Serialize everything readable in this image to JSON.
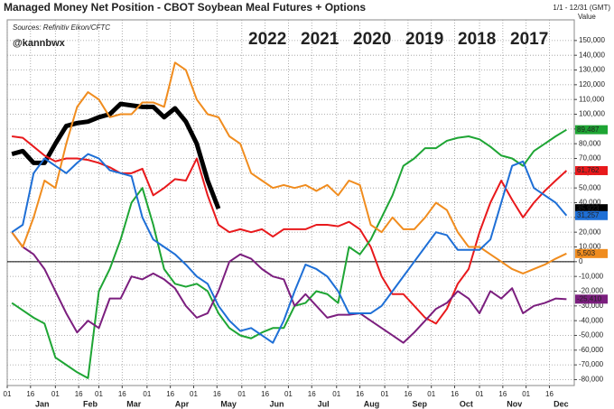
{
  "chart_data": {
    "type": "line",
    "title": "Managed Money Net Position - CBOT Soybean Meal Futures + Options",
    "source": "Sources: Refinitiv Eikon/CFTC",
    "author": "@kannbwx",
    "date_range": "1/1 - 12/31 (GMT)",
    "y_axis_label": "Value",
    "months": [
      "Jan",
      "Feb",
      "Mar",
      "Apr",
      "May",
      "Jun",
      "Jul",
      "Aug",
      "Sep",
      "Oct",
      "Nov",
      "Dec"
    ],
    "xlim": [
      1,
      366
    ],
    "xticks": [
      {
        "value": 1,
        "label": "01"
      },
      {
        "value": 16,
        "label": "16"
      },
      {
        "value": 32,
        "label": "01"
      },
      {
        "value": 47,
        "label": "16"
      },
      {
        "value": 60,
        "label": "01"
      },
      {
        "value": 75,
        "label": "16"
      },
      {
        "value": 91,
        "label": "01"
      },
      {
        "value": 106,
        "label": "16"
      },
      {
        "value": 121,
        "label": "01"
      },
      {
        "value": 136,
        "label": "16"
      },
      {
        "value": 152,
        "label": "01"
      },
      {
        "value": 167,
        "label": "16"
      },
      {
        "value": 182,
        "label": "01"
      },
      {
        "value": 197,
        "label": "16"
      },
      {
        "value": 213,
        "label": "01"
      },
      {
        "value": 228,
        "label": "16"
      },
      {
        "value": 244,
        "label": "01"
      },
      {
        "value": 259,
        "label": "16"
      },
      {
        "value": 274,
        "label": "01"
      },
      {
        "value": 289,
        "label": "16"
      },
      {
        "value": 305,
        "label": "01"
      },
      {
        "value": 320,
        "label": "16"
      },
      {
        "value": 335,
        "label": "01"
      },
      {
        "value": 350,
        "label": "16"
      }
    ],
    "ylim": [
      -84000,
      164000
    ],
    "yticks": [
      {
        "value": -80000,
        "label": "-80,000"
      },
      {
        "value": -70000,
        "label": "-70,000"
      },
      {
        "value": -60000,
        "label": "-60,000"
      },
      {
        "value": -50000,
        "label": "-50,000"
      },
      {
        "value": -40000,
        "label": "-40,000"
      },
      {
        "value": -30000,
        "label": "-30,000"
      },
      {
        "value": -20000,
        "label": "-20,000"
      },
      {
        "value": -10000,
        "label": "-10,000"
      },
      0,
      {
        "value": 10000,
        "label": "10,000"
      },
      {
        "value": 20000,
        "label": "20,000"
      },
      {
        "value": 30000,
        "label": "30,000"
      },
      {
        "value": 40000,
        "label": "40,000"
      },
      {
        "value": 50000,
        "label": "50,000"
      },
      {
        "value": 60000,
        "label": "60,000"
      },
      {
        "value": 70000,
        "label": "70,000"
      },
      {
        "value": 80000,
        "label": "80,000"
      },
      {
        "value": 90000,
        "label": "90,000"
      },
      {
        "value": 100000,
        "label": "100,000"
      },
      {
        "value": 110000,
        "label": "110,000"
      },
      {
        "value": 120000,
        "label": "120,000"
      },
      {
        "value": 130000,
        "label": "130,000"
      },
      {
        "value": 140000,
        "label": "140,000"
      },
      {
        "value": 150000,
        "label": "150,000"
      }
    ],
    "grid": true,
    "x": [
      4,
      11,
      18,
      25,
      32,
      39,
      46,
      53,
      60,
      67,
      74,
      81,
      88,
      95,
      102,
      109,
      116,
      123,
      130,
      137,
      144,
      151,
      158,
      165,
      172,
      179,
      186,
      193,
      200,
      207,
      214,
      221,
      228,
      235,
      242,
      249,
      256,
      263,
      270,
      277,
      284,
      291,
      298,
      305,
      312,
      319,
      326,
      333,
      340,
      347,
      354,
      361
    ],
    "series": [
      {
        "name": "2022",
        "color": "#000000",
        "width": 5,
        "end_label": "35,923",
        "values": [
          73000,
          75000,
          67000,
          67000,
          80000,
          92000,
          94000,
          95000,
          98000,
          100000,
          107000,
          106000,
          105000,
          105000,
          98000,
          104000,
          95000,
          80000,
          55000,
          35923,
          null,
          null,
          null,
          null,
          null,
          null,
          null,
          null,
          null,
          null,
          null,
          null,
          null,
          null,
          null,
          null,
          null,
          null,
          null,
          null,
          null,
          null,
          null,
          null,
          null,
          null,
          null,
          null,
          null,
          null,
          null,
          null
        ]
      },
      {
        "name": "2021",
        "color": "#e8191c",
        "width": 2,
        "end_label": "61,762",
        "values": [
          85000,
          84000,
          78000,
          72000,
          68000,
          70000,
          70000,
          69000,
          67000,
          64000,
          60000,
          60000,
          63000,
          45000,
          50000,
          56000,
          55000,
          70000,
          45000,
          25000,
          20000,
          22000,
          20000,
          22000,
          17000,
          22000,
          22000,
          22000,
          25000,
          25000,
          24000,
          27000,
          22000,
          10000,
          -10000,
          -22000,
          -22000,
          -30000,
          -38000,
          -42000,
          -32000,
          -15000,
          -5000,
          20000,
          40000,
          55000,
          42000,
          30000,
          40000,
          48000,
          55000,
          61762
        ]
      },
      {
        "name": "2020",
        "color": "#1ea534",
        "width": 2,
        "end_label": "89,487",
        "values": [
          -28000,
          -33000,
          -38000,
          -42000,
          -65000,
          -70000,
          -75000,
          -79000,
          -20000,
          -5000,
          15000,
          40000,
          50000,
          25000,
          -5000,
          -15000,
          -17000,
          -15000,
          -20000,
          -35000,
          -45000,
          -50000,
          -52000,
          -48000,
          -45000,
          -45000,
          -30000,
          -28000,
          -20000,
          -22000,
          -28000,
          10000,
          5000,
          15000,
          30000,
          45000,
          65000,
          70000,
          77000,
          77000,
          82000,
          84000,
          85000,
          83000,
          78000,
          72000,
          70000,
          65000,
          75000,
          80000,
          85000,
          89487
        ]
      },
      {
        "name": "2019",
        "color": "#7b1e7e",
        "width": 2,
        "end_label": "-25,410",
        "values": [
          20000,
          10000,
          5000,
          -5000,
          -20000,
          -35000,
          -48000,
          -40000,
          -45000,
          -25000,
          -25000,
          -10000,
          -12000,
          -8000,
          -12000,
          -18000,
          -30000,
          -38000,
          -35000,
          -20000,
          0,
          5000,
          2000,
          -5000,
          -10000,
          -12000,
          -30000,
          -22000,
          -30000,
          -38000,
          -36000,
          -36000,
          -35000,
          -40000,
          -45000,
          -50000,
          -55000,
          -48000,
          -40000,
          -32000,
          -28000,
          -20000,
          -25000,
          -35000,
          -20000,
          -25000,
          -18000,
          -35000,
          -30000,
          -28000,
          -25000,
          -25410
        ]
      },
      {
        "name": "2018",
        "color": "#f08c1e",
        "width": 2,
        "end_label": "5,503",
        "values": [
          20000,
          10000,
          30000,
          55000,
          50000,
          80000,
          105000,
          115000,
          110000,
          98000,
          100000,
          100000,
          108000,
          108000,
          105000,
          135000,
          130000,
          110000,
          100000,
          98000,
          85000,
          80000,
          60000,
          55000,
          50000,
          52000,
          50000,
          52000,
          48000,
          52000,
          45000,
          55000,
          52000,
          25000,
          20000,
          30000,
          22000,
          22000,
          30000,
          40000,
          35000,
          20000,
          10000,
          10000,
          5000,
          0,
          -5000,
          -8000,
          -5000,
          -2000,
          2000,
          5503
        ]
      },
      {
        "name": "2017",
        "color": "#1e6fd6",
        "width": 2,
        "end_label": "31,257",
        "values": [
          20000,
          25000,
          60000,
          70000,
          65000,
          60000,
          67000,
          73000,
          70000,
          62000,
          60000,
          58000,
          30000,
          15000,
          10000,
          5000,
          -2000,
          -10000,
          -15000,
          -30000,
          -40000,
          -47000,
          -45000,
          -50000,
          -55000,
          -40000,
          -20000,
          -2000,
          -5000,
          -10000,
          -20000,
          -35000,
          -35000,
          -35000,
          -30000,
          -20000,
          -10000,
          0,
          10000,
          20000,
          18000,
          8000,
          8000,
          8000,
          15000,
          40000,
          65000,
          68000,
          50000,
          45000,
          40000,
          31257
        ]
      }
    ]
  }
}
